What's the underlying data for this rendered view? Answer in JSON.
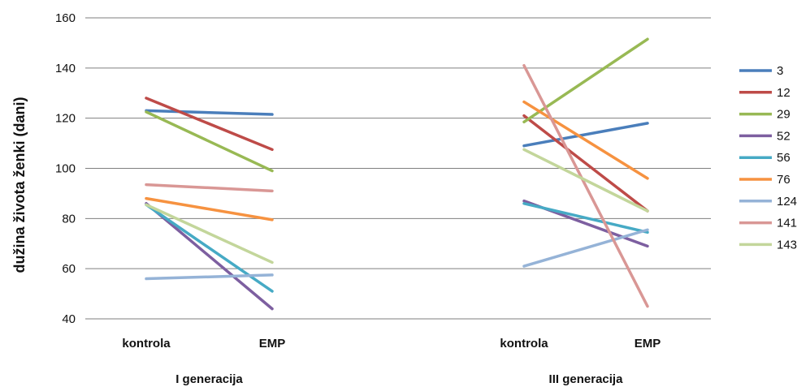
{
  "chart_data": {
    "type": "line",
    "title": "",
    "ylabel": "dužina života ženki (dani)",
    "ylim": [
      40,
      160
    ],
    "yticks": [
      40,
      60,
      80,
      100,
      120,
      140,
      160
    ],
    "grid": true,
    "legend_position": "right",
    "groups": [
      {
        "label": "I generacija",
        "categories": [
          "kontrola",
          "EMP"
        ]
      },
      {
        "label": "III generacija",
        "categories": [
          "kontrola",
          "EMP"
        ]
      }
    ],
    "series": [
      {
        "name": "3",
        "color": "#4a7ebb",
        "values": [
          [
            123,
            121.5
          ],
          [
            109,
            118
          ]
        ]
      },
      {
        "name": "12",
        "color": "#be4b48",
        "values": [
          [
            128,
            107.5
          ],
          [
            121,
            83
          ]
        ]
      },
      {
        "name": "29",
        "color": "#98b954",
        "values": [
          [
            122.5,
            99
          ],
          [
            118.5,
            151.5
          ]
        ]
      },
      {
        "name": "52",
        "color": "#7d5fa0",
        "values": [
          [
            86,
            44
          ],
          [
            87,
            69
          ]
        ]
      },
      {
        "name": "56",
        "color": "#46aac5",
        "values": [
          [
            85.5,
            51
          ],
          [
            86,
            74.5
          ]
        ]
      },
      {
        "name": "76",
        "color": "#f69240",
        "values": [
          [
            88,
            79.5
          ],
          [
            126.5,
            96
          ]
        ]
      },
      {
        "name": "124",
        "color": "#95b3d7",
        "values": [
          [
            56,
            57.5
          ],
          [
            61,
            75.5
          ]
        ]
      },
      {
        "name": "141",
        "color": "#d99795",
        "values": [
          [
            93.5,
            91
          ],
          [
            141,
            45
          ]
        ]
      },
      {
        "name": "143",
        "color": "#c3d69b",
        "values": [
          [
            85.5,
            62.5
          ],
          [
            107.5,
            83
          ]
        ]
      }
    ]
  }
}
